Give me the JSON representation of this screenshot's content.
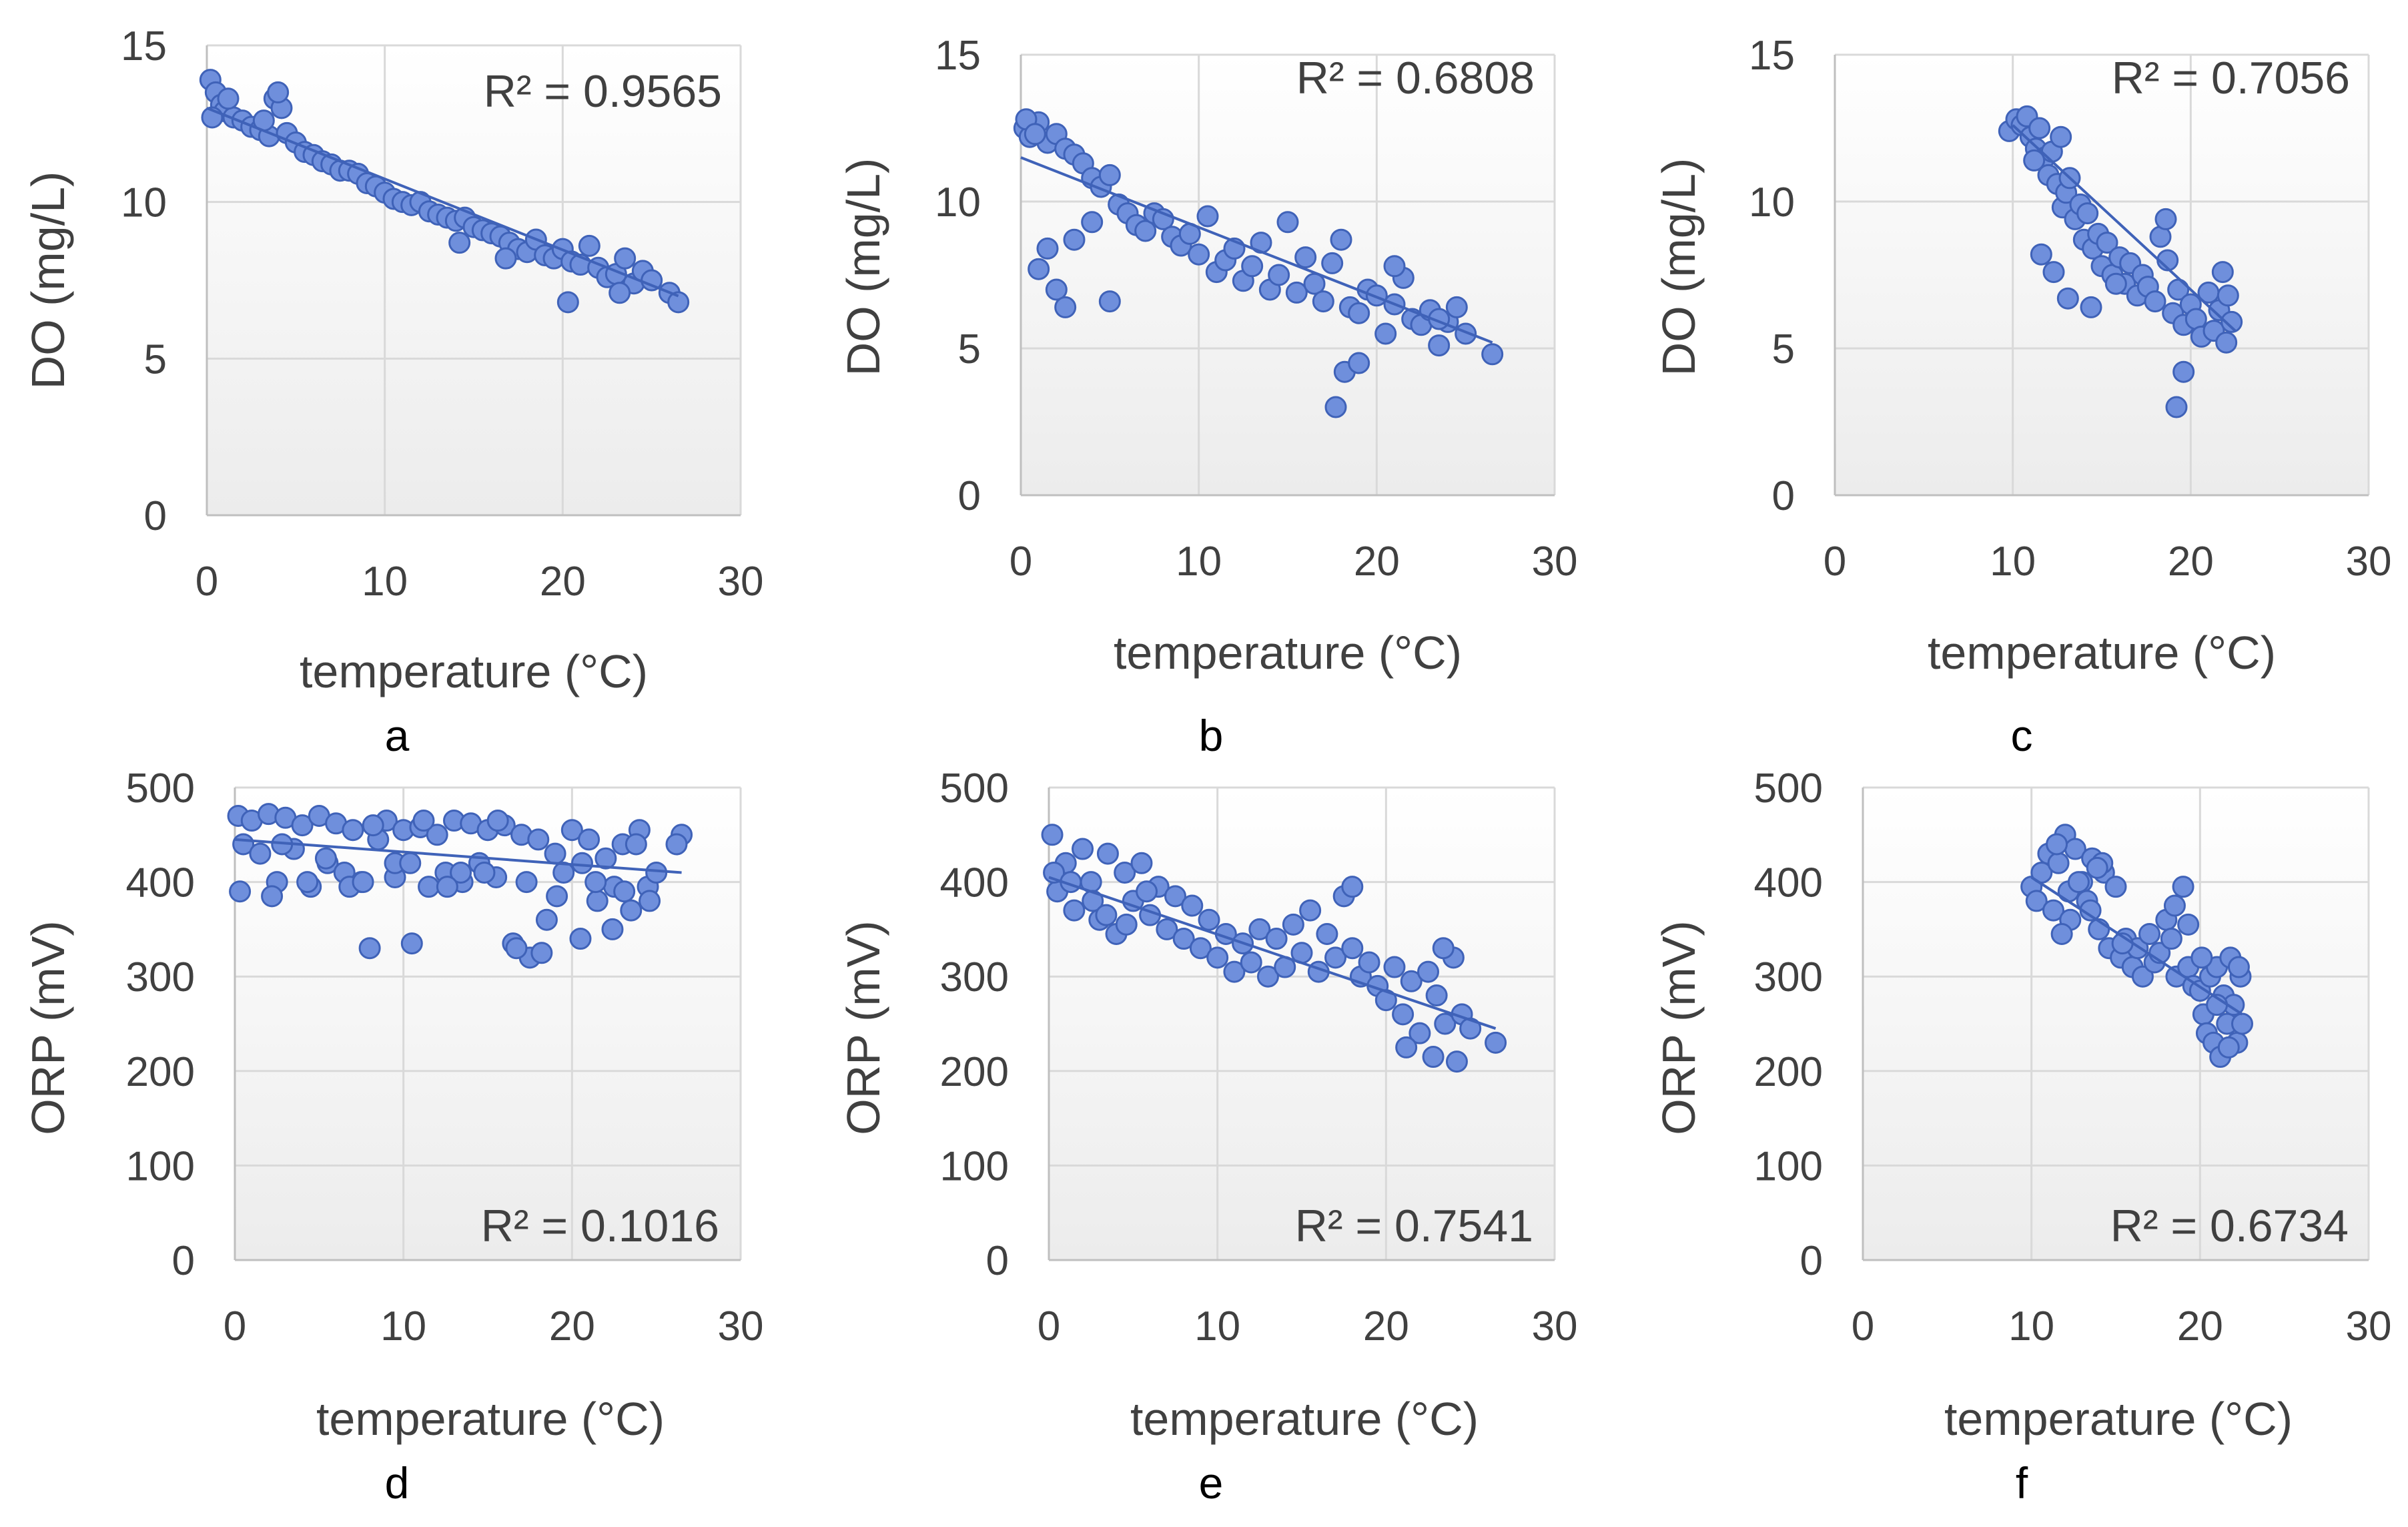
{
  "figure": {
    "description_free": true,
    "colors": {
      "point_fill": "#6f8fdc",
      "point_stroke": "#3f62b8",
      "trendline": "#3f62b8",
      "grid": "#d9d9d9",
      "plot_bg_top": "#ffffff",
      "plot_bg_bottom": "#ececec"
    }
  },
  "chart_data": [
    {
      "panel": "a",
      "type": "scatter",
      "xlabel": "temperature (°C)",
      "ylabel": "DO (mg/L)",
      "xlim": [
        0,
        30
      ],
      "ylim": [
        0,
        15
      ],
      "xticks": [
        "0",
        "10",
        "20",
        "30"
      ],
      "yticks": [
        "0",
        "5",
        "10",
        "15"
      ],
      "r2_text": "R² = 0.9565",
      "r2_position": "top-right",
      "trend": {
        "x0": 0,
        "x1": 26.5,
        "y0": 13.0,
        "y1": 7.0
      },
      "series": [
        {
          "name": "DO",
          "x": [
            0.2,
            0.5,
            0.8,
            1.0,
            1.5,
            2.0,
            2.5,
            3.0,
            3.5,
            3.8,
            4.2,
            4.5,
            5.0,
            5.5,
            6.0,
            6.5,
            7.0,
            7.5,
            8.0,
            8.5,
            9.0,
            9.5,
            10.0,
            10.5,
            11.0,
            11.5,
            12.0,
            12.5,
            13.0,
            13.5,
            14.0,
            14.5,
            15.0,
            15.5,
            16.0,
            16.5,
            17.0,
            17.5,
            18.0,
            18.5,
            19.0,
            19.5,
            20.0,
            20.5,
            21.0,
            21.5,
            22.0,
            22.5,
            23.0,
            23.5,
            24.0,
            24.5,
            25.0,
            26.0,
            26.5,
            0.3,
            1.2,
            3.2,
            4.0,
            14.2,
            16.8,
            20.3,
            23.2
          ],
          "y": [
            13.9,
            13.5,
            13.1,
            12.9,
            12.7,
            12.6,
            12.4,
            12.3,
            12.1,
            13.3,
            13.0,
            12.2,
            11.9,
            11.6,
            11.5,
            11.3,
            11.2,
            11.0,
            11.0,
            10.9,
            10.6,
            10.5,
            10.3,
            10.1,
            10.0,
            9.9,
            10.0,
            9.7,
            9.6,
            9.5,
            9.4,
            9.5,
            9.2,
            9.1,
            9.0,
            8.9,
            8.7,
            8.5,
            8.4,
            8.8,
            8.3,
            8.2,
            8.5,
            8.1,
            8.0,
            8.6,
            7.9,
            7.6,
            7.7,
            8.2,
            7.4,
            7.8,
            7.5,
            7.1,
            6.8,
            12.7,
            13.3,
            12.6,
            13.5,
            8.7,
            8.2,
            6.8,
            7.1
          ]
        }
      ]
    },
    {
      "panel": "b",
      "type": "scatter",
      "xlabel": "temperature (°C)",
      "ylabel": "DO (mg/L)",
      "xlim": [
        0,
        30
      ],
      "ylim": [
        0,
        15
      ],
      "xticks": [
        "0",
        "10",
        "20",
        "30"
      ],
      "yticks": [
        "0",
        "5",
        "10",
        "15"
      ],
      "r2_text": "R² = 0.6808",
      "r2_position": "top-right",
      "trend": {
        "x0": 0,
        "x1": 26.5,
        "y0": 11.5,
        "y1": 5.2
      },
      "series": [
        {
          "name": "DO",
          "x": [
            0.2,
            0.5,
            1.0,
            1.5,
            2.0,
            2.5,
            3.0,
            3.5,
            4.0,
            4.5,
            5.0,
            5.5,
            6.0,
            6.5,
            7.0,
            7.5,
            8.0,
            8.5,
            9.0,
            9.5,
            10.0,
            10.5,
            11.0,
            11.5,
            12.0,
            12.5,
            13.0,
            13.5,
            14.0,
            14.5,
            15.0,
            15.5,
            16.0,
            16.5,
            17.0,
            17.5,
            18.0,
            18.5,
            19.0,
            19.5,
            20.0,
            20.5,
            21.0,
            21.5,
            22.0,
            22.5,
            23.0,
            23.5,
            24.0,
            24.5,
            25.0,
            26.5,
            1.0,
            1.5,
            2.0,
            3.0,
            4.0,
            5.0,
            17.7,
            18.2,
            19.0,
            0.3,
            0.8,
            2.5,
            21.0,
            23.5
          ],
          "y": [
            12.5,
            12.2,
            12.7,
            12.0,
            12.3,
            11.8,
            11.6,
            11.3,
            10.8,
            10.5,
            10.9,
            9.9,
            9.6,
            9.2,
            9.0,
            9.6,
            9.4,
            8.8,
            8.5,
            8.9,
            8.2,
            9.5,
            7.6,
            8.0,
            8.4,
            7.3,
            7.8,
            8.6,
            7.0,
            7.5,
            9.3,
            6.9,
            8.1,
            7.2,
            6.6,
            7.9,
            8.7,
            6.4,
            6.2,
            7.0,
            6.8,
            5.5,
            6.5,
            7.4,
            6.0,
            5.8,
            6.3,
            5.1,
            5.9,
            6.4,
            5.5,
            4.8,
            7.7,
            8.4,
            7.0,
            8.7,
            9.3,
            6.6,
            3.0,
            4.2,
            4.5,
            12.8,
            12.3,
            6.4,
            7.8,
            6.0
          ]
        }
      ]
    },
    {
      "panel": "c",
      "type": "scatter",
      "xlabel": "temperature (°C)",
      "ylabel": "DO (mg/L)",
      "xlim": [
        0,
        30
      ],
      "ylim": [
        0,
        15
      ],
      "xticks": [
        "0",
        "10",
        "20",
        "30"
      ],
      "yticks": [
        "0",
        "5",
        "10",
        "15"
      ],
      "r2_text": "R² = 0.7056",
      "r2_position": "top-right",
      "trend": {
        "x0": 10,
        "x1": 22.5,
        "y0": 12.6,
        "y1": 5.6
      },
      "series": [
        {
          "name": "DO",
          "x": [
            9.8,
            10.2,
            10.5,
            10.8,
            11.0,
            11.3,
            11.5,
            11.8,
            12.0,
            12.2,
            12.5,
            12.8,
            13.0,
            13.2,
            13.5,
            13.8,
            14.0,
            14.2,
            14.5,
            14.8,
            15.0,
            15.3,
            15.6,
            16.0,
            16.3,
            16.6,
            17.0,
            17.3,
            17.6,
            18.0,
            18.3,
            18.6,
            19.0,
            19.3,
            19.6,
            20.0,
            20.3,
            20.6,
            21.0,
            21.3,
            21.6,
            22.0,
            22.3,
            11.6,
            12.3,
            13.1,
            14.4,
            15.8,
            18.7,
            19.2,
            19.6,
            21.8,
            22.1,
            11.2,
            12.7
          ],
          "y": [
            12.4,
            12.8,
            12.6,
            12.9,
            12.2,
            11.8,
            12.5,
            11.5,
            10.9,
            11.7,
            10.6,
            9.8,
            10.3,
            10.8,
            9.4,
            9.9,
            8.7,
            9.6,
            8.4,
            8.9,
            7.8,
            8.6,
            7.5,
            8.1,
            7.2,
            7.9,
            6.8,
            7.5,
            7.1,
            6.6,
            8.8,
            9.4,
            6.2,
            7.0,
            5.8,
            6.5,
            6.0,
            5.4,
            6.9,
            5.6,
            6.3,
            5.2,
            5.9,
            8.2,
            7.6,
            6.7,
            6.4,
            7.2,
            8.0,
            3.0,
            4.2,
            7.6,
            6.8,
            11.4,
            12.2
          ]
        }
      ]
    },
    {
      "panel": "d",
      "type": "scatter",
      "xlabel": "temperature (°C)",
      "ylabel": "ORP (mV)",
      "xlim": [
        0,
        30
      ],
      "ylim": [
        0,
        500
      ],
      "xticks": [
        "0",
        "10",
        "20",
        "30"
      ],
      "yticks": [
        "0",
        "100",
        "200",
        "300",
        "400",
        "500"
      ],
      "r2_text": "R² = 0.1016",
      "r2_position": "bottom-right",
      "trend": {
        "x0": 0,
        "x1": 26.5,
        "y0": 445,
        "y1": 410
      },
      "series": [
        {
          "name": "ORP",
          "x": [
            0.2,
            0.5,
            1.0,
            1.5,
            2.0,
            2.5,
            3.0,
            3.5,
            4.0,
            4.5,
            5.0,
            5.5,
            6.0,
            6.5,
            7.0,
            7.5,
            8.0,
            8.5,
            9.0,
            9.5,
            10.0,
            10.5,
            11.0,
            11.5,
            12.0,
            12.5,
            13.0,
            13.5,
            14.0,
            14.5,
            15.0,
            15.5,
            16.0,
            16.5,
            17.0,
            17.5,
            18.0,
            18.5,
            19.0,
            19.5,
            20.0,
            20.5,
            21.0,
            21.5,
            22.0,
            22.5,
            23.0,
            23.5,
            24.0,
            24.5,
            25.0,
            26.5,
            0.3,
            2.2,
            4.3,
            6.8,
            8.2,
            9.5,
            11.2,
            13.4,
            15.6,
            16.7,
            17.3,
            18.2,
            19.1,
            20.6,
            22.4,
            23.8,
            24.6,
            26.2,
            2.8,
            5.4,
            7.6,
            10.4,
            12.6,
            14.8,
            21.4,
            23.1
          ],
          "y": [
            470,
            440,
            465,
            430,
            472,
            400,
            468,
            435,
            460,
            395,
            470,
            420,
            462,
            410,
            455,
            400,
            330,
            445,
            465,
            405,
            455,
            335,
            458,
            395,
            450,
            410,
            465,
            400,
            462,
            420,
            455,
            405,
            460,
            335,
            450,
            320,
            445,
            360,
            430,
            410,
            455,
            340,
            445,
            380,
            425,
            395,
            440,
            370,
            455,
            395,
            410,
            450,
            390,
            385,
            400,
            395,
            460,
            420,
            465,
            410,
            465,
            330,
            400,
            325,
            385,
            420,
            350,
            440,
            380,
            440,
            440,
            425,
            400,
            420,
            395,
            410,
            400,
            390
          ]
        }
      ]
    },
    {
      "panel": "e",
      "type": "scatter",
      "xlabel": "temperature (°C)",
      "ylabel": "ORP (mV)",
      "xlim": [
        0,
        30
      ],
      "ylim": [
        0,
        500
      ],
      "xticks": [
        "0",
        "10",
        "20",
        "30"
      ],
      "yticks": [
        "0",
        "100",
        "200",
        "300",
        "400",
        "500"
      ],
      "r2_text": "R² = 0.7541",
      "r2_position": "bottom-right",
      "trend": {
        "x0": 0,
        "x1": 26.5,
        "y0": 405,
        "y1": 245
      },
      "series": [
        {
          "name": "ORP",
          "x": [
            0.2,
            0.5,
            1.0,
            1.5,
            2.0,
            2.5,
            3.0,
            3.5,
            4.0,
            4.5,
            5.0,
            5.5,
            6.0,
            6.5,
            7.0,
            7.5,
            8.0,
            8.5,
            9.0,
            9.5,
            10.0,
            10.5,
            11.0,
            11.5,
            12.0,
            12.5,
            13.0,
            13.5,
            14.0,
            14.5,
            15.0,
            15.5,
            16.0,
            16.5,
            17.0,
            17.5,
            18.0,
            18.5,
            19.0,
            19.5,
            20.0,
            20.5,
            21.0,
            21.5,
            22.0,
            22.5,
            23.0,
            23.5,
            24.0,
            24.5,
            25.0,
            26.5,
            0.3,
            1.3,
            2.6,
            3.4,
            4.6,
            5.8,
            18.0,
            21.2,
            22.8,
            23.4,
            24.2
          ],
          "y": [
            450,
            390,
            420,
            370,
            435,
            400,
            360,
            430,
            345,
            410,
            380,
            420,
            365,
            395,
            350,
            385,
            340,
            375,
            330,
            360,
            320,
            345,
            305,
            335,
            315,
            350,
            300,
            340,
            310,
            355,
            325,
            370,
            305,
            345,
            320,
            385,
            330,
            300,
            315,
            290,
            275,
            310,
            260,
            295,
            240,
            305,
            280,
            250,
            320,
            260,
            245,
            230,
            410,
            400,
            380,
            365,
            355,
            390,
            395,
            225,
            215,
            330,
            210
          ]
        }
      ]
    },
    {
      "panel": "f",
      "type": "scatter",
      "xlabel": "temperature (°C)",
      "ylabel": "ORP (mV)",
      "xlim": [
        0,
        30
      ],
      "ylim": [
        0,
        500
      ],
      "xticks": [
        "0",
        "10",
        "20",
        "30"
      ],
      "yticks": [
        "0",
        "100",
        "200",
        "300",
        "400",
        "500"
      ],
      "r2_text": "R² = 0.6734",
      "r2_position": "bottom-right",
      "trend": {
        "x0": 10,
        "x1": 22.5,
        "y0": 405,
        "y1": 260
      },
      "series": [
        {
          "name": "ORP",
          "x": [
            10.0,
            10.3,
            10.6,
            11.0,
            11.3,
            11.6,
            12.0,
            12.3,
            12.6,
            13.0,
            13.3,
            13.6,
            14.0,
            14.3,
            14.6,
            15.0,
            15.3,
            15.6,
            16.0,
            16.3,
            16.6,
            17.0,
            17.3,
            17.6,
            18.0,
            18.3,
            18.6,
            19.0,
            19.3,
            19.6,
            20.0,
            20.2,
            20.4,
            20.6,
            20.8,
            21.0,
            21.2,
            21.4,
            21.6,
            21.8,
            22.0,
            22.2,
            22.4,
            22.5,
            11.5,
            12.2,
            12.8,
            13.5,
            14.2,
            15.4,
            18.5,
            19.3,
            20.1,
            21.0,
            21.7,
            22.3,
            11.8,
            13.9
          ],
          "y": [
            395,
            380,
            410,
            430,
            370,
            420,
            450,
            360,
            435,
            400,
            380,
            425,
            350,
            410,
            330,
            395,
            320,
            340,
            310,
            330,
            300,
            345,
            315,
            325,
            360,
            340,
            300,
            395,
            310,
            290,
            285,
            260,
            240,
            300,
            230,
            310,
            215,
            280,
            250,
            320,
            270,
            230,
            300,
            250,
            440,
            390,
            400,
            370,
            420,
            335,
            375,
            355,
            320,
            270,
            225,
            310,
            345,
            415
          ]
        }
      ]
    }
  ],
  "panels": [
    {
      "letter": "a"
    },
    {
      "letter": "b"
    },
    {
      "letter": "c"
    },
    {
      "letter": "d"
    },
    {
      "letter": "e"
    },
    {
      "letter": "f"
    }
  ]
}
